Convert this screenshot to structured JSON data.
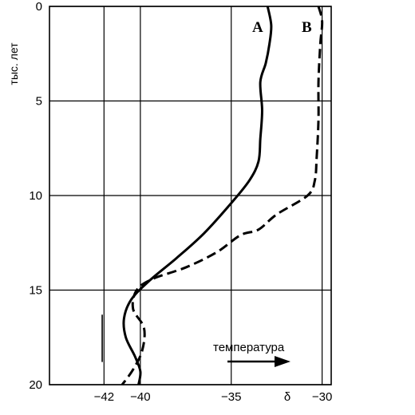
{
  "chart_data": {
    "type": "line",
    "title": "",
    "xlabel": "δ",
    "ylabel": "тыс. лет",
    "xlim": [
      -45,
      -29.5
    ],
    "ylim": [
      0,
      20
    ],
    "y_inverted": true,
    "grid": true,
    "x_ticks": [
      {
        "value": -42,
        "label": "−42"
      },
      {
        "value": -40,
        "label": "−40"
      },
      {
        "value": -35,
        "label": "−35"
      },
      {
        "value": -30,
        "label": "−30"
      }
    ],
    "y_ticks": [
      {
        "value": 0,
        "label": "0"
      },
      {
        "value": 5,
        "label": "5"
      },
      {
        "value": 10,
        "label": "10"
      },
      {
        "value": 15,
        "label": "15"
      },
      {
        "value": 20,
        "label": "20"
      }
    ],
    "series": [
      {
        "name": "A",
        "style": "solid",
        "color": "#000000",
        "points": [
          {
            "x": -33.0,
            "y": 0.0
          },
          {
            "x": -32.8,
            "y": 1.0
          },
          {
            "x": -32.9,
            "y": 2.0
          },
          {
            "x": -33.1,
            "y": 3.0
          },
          {
            "x": -33.4,
            "y": 4.0
          },
          {
            "x": -33.3,
            "y": 5.5
          },
          {
            "x": -33.4,
            "y": 7.0
          },
          {
            "x": -33.5,
            "y": 8.2
          },
          {
            "x": -34.0,
            "y": 9.2
          },
          {
            "x": -35.0,
            "y": 10.4
          },
          {
            "x": -36.5,
            "y": 12.0
          },
          {
            "x": -38.0,
            "y": 13.3
          },
          {
            "x": -39.5,
            "y": 14.5
          },
          {
            "x": -40.5,
            "y": 15.5
          },
          {
            "x": -40.9,
            "y": 16.5
          },
          {
            "x": -40.8,
            "y": 17.5
          },
          {
            "x": -40.3,
            "y": 18.5
          },
          {
            "x": -40.0,
            "y": 19.3
          },
          {
            "x": -40.1,
            "y": 20.0
          }
        ]
      },
      {
        "name": "B",
        "style": "dashed",
        "color": "#000000",
        "points": [
          {
            "x": -30.2,
            "y": 0.0
          },
          {
            "x": -30.0,
            "y": 0.8
          },
          {
            "x": -30.1,
            "y": 2.0
          },
          {
            "x": -30.2,
            "y": 4.0
          },
          {
            "x": -30.2,
            "y": 6.0
          },
          {
            "x": -30.3,
            "y": 8.0
          },
          {
            "x": -30.4,
            "y": 9.2
          },
          {
            "x": -30.8,
            "y": 10.0
          },
          {
            "x": -32.5,
            "y": 11.0
          },
          {
            "x": -33.5,
            "y": 11.8
          },
          {
            "x": -34.5,
            "y": 12.1
          },
          {
            "x": -35.8,
            "y": 13.0
          },
          {
            "x": -37.5,
            "y": 13.8
          },
          {
            "x": -39.3,
            "y": 14.4
          },
          {
            "x": -40.2,
            "y": 15.0
          },
          {
            "x": -40.4,
            "y": 16.0
          },
          {
            "x": -39.8,
            "y": 17.0
          },
          {
            "x": -39.9,
            "y": 18.2
          },
          {
            "x": -40.4,
            "y": 19.2
          },
          {
            "x": -41.0,
            "y": 20.0
          }
        ]
      },
      {
        "name": "",
        "style": "solid",
        "color": "#000000",
        "points": [
          {
            "x": -42.1,
            "y": 16.3
          },
          {
            "x": -42.1,
            "y": 18.8
          }
        ]
      }
    ],
    "annotations": [
      {
        "text": "температура",
        "with_arrow": true,
        "arrow_direction": "right"
      }
    ]
  }
}
